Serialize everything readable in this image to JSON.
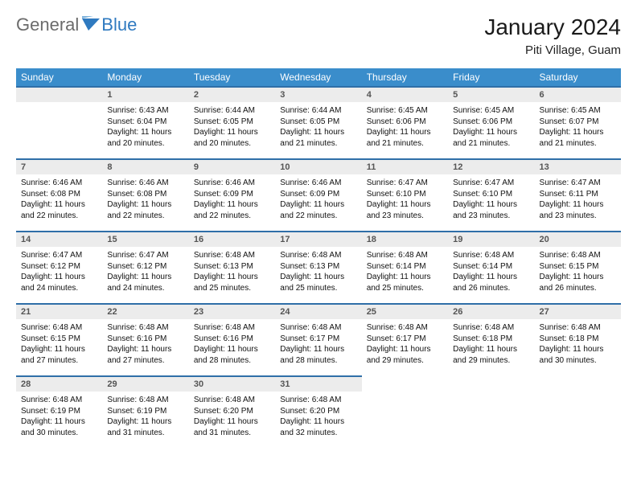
{
  "brand": {
    "part1": "General",
    "part2": "Blue"
  },
  "title": "January 2024",
  "location": "Piti Village, Guam",
  "colors": {
    "header_bg": "#3a8dcb",
    "header_text": "#ffffff",
    "row_divider": "#2f6fa8",
    "day_head_bg": "#ececec",
    "logo_accent": "#2f7ac0",
    "logo_gray": "#6b6b6b"
  },
  "dow": [
    "Sunday",
    "Monday",
    "Tuesday",
    "Wednesday",
    "Thursday",
    "Friday",
    "Saturday"
  ],
  "leading_blanks": 0,
  "days": [
    {
      "n": "",
      "sunrise": "",
      "sunset": "",
      "daylight": ""
    },
    {
      "n": "1",
      "sunrise": "Sunrise: 6:43 AM",
      "sunset": "Sunset: 6:04 PM",
      "daylight": "Daylight: 11 hours and 20 minutes."
    },
    {
      "n": "2",
      "sunrise": "Sunrise: 6:44 AM",
      "sunset": "Sunset: 6:05 PM",
      "daylight": "Daylight: 11 hours and 20 minutes."
    },
    {
      "n": "3",
      "sunrise": "Sunrise: 6:44 AM",
      "sunset": "Sunset: 6:05 PM",
      "daylight": "Daylight: 11 hours and 21 minutes."
    },
    {
      "n": "4",
      "sunrise": "Sunrise: 6:45 AM",
      "sunset": "Sunset: 6:06 PM",
      "daylight": "Daylight: 11 hours and 21 minutes."
    },
    {
      "n": "5",
      "sunrise": "Sunrise: 6:45 AM",
      "sunset": "Sunset: 6:06 PM",
      "daylight": "Daylight: 11 hours and 21 minutes."
    },
    {
      "n": "6",
      "sunrise": "Sunrise: 6:45 AM",
      "sunset": "Sunset: 6:07 PM",
      "daylight": "Daylight: 11 hours and 21 minutes."
    },
    {
      "n": "7",
      "sunrise": "Sunrise: 6:46 AM",
      "sunset": "Sunset: 6:08 PM",
      "daylight": "Daylight: 11 hours and 22 minutes."
    },
    {
      "n": "8",
      "sunrise": "Sunrise: 6:46 AM",
      "sunset": "Sunset: 6:08 PM",
      "daylight": "Daylight: 11 hours and 22 minutes."
    },
    {
      "n": "9",
      "sunrise": "Sunrise: 6:46 AM",
      "sunset": "Sunset: 6:09 PM",
      "daylight": "Daylight: 11 hours and 22 minutes."
    },
    {
      "n": "10",
      "sunrise": "Sunrise: 6:46 AM",
      "sunset": "Sunset: 6:09 PM",
      "daylight": "Daylight: 11 hours and 22 minutes."
    },
    {
      "n": "11",
      "sunrise": "Sunrise: 6:47 AM",
      "sunset": "Sunset: 6:10 PM",
      "daylight": "Daylight: 11 hours and 23 minutes."
    },
    {
      "n": "12",
      "sunrise": "Sunrise: 6:47 AM",
      "sunset": "Sunset: 6:10 PM",
      "daylight": "Daylight: 11 hours and 23 minutes."
    },
    {
      "n": "13",
      "sunrise": "Sunrise: 6:47 AM",
      "sunset": "Sunset: 6:11 PM",
      "daylight": "Daylight: 11 hours and 23 minutes."
    },
    {
      "n": "14",
      "sunrise": "Sunrise: 6:47 AM",
      "sunset": "Sunset: 6:12 PM",
      "daylight": "Daylight: 11 hours and 24 minutes."
    },
    {
      "n": "15",
      "sunrise": "Sunrise: 6:47 AM",
      "sunset": "Sunset: 6:12 PM",
      "daylight": "Daylight: 11 hours and 24 minutes."
    },
    {
      "n": "16",
      "sunrise": "Sunrise: 6:48 AM",
      "sunset": "Sunset: 6:13 PM",
      "daylight": "Daylight: 11 hours and 25 minutes."
    },
    {
      "n": "17",
      "sunrise": "Sunrise: 6:48 AM",
      "sunset": "Sunset: 6:13 PM",
      "daylight": "Daylight: 11 hours and 25 minutes."
    },
    {
      "n": "18",
      "sunrise": "Sunrise: 6:48 AM",
      "sunset": "Sunset: 6:14 PM",
      "daylight": "Daylight: 11 hours and 25 minutes."
    },
    {
      "n": "19",
      "sunrise": "Sunrise: 6:48 AM",
      "sunset": "Sunset: 6:14 PM",
      "daylight": "Daylight: 11 hours and 26 minutes."
    },
    {
      "n": "20",
      "sunrise": "Sunrise: 6:48 AM",
      "sunset": "Sunset: 6:15 PM",
      "daylight": "Daylight: 11 hours and 26 minutes."
    },
    {
      "n": "21",
      "sunrise": "Sunrise: 6:48 AM",
      "sunset": "Sunset: 6:15 PM",
      "daylight": "Daylight: 11 hours and 27 minutes."
    },
    {
      "n": "22",
      "sunrise": "Sunrise: 6:48 AM",
      "sunset": "Sunset: 6:16 PM",
      "daylight": "Daylight: 11 hours and 27 minutes."
    },
    {
      "n": "23",
      "sunrise": "Sunrise: 6:48 AM",
      "sunset": "Sunset: 6:16 PM",
      "daylight": "Daylight: 11 hours and 28 minutes."
    },
    {
      "n": "24",
      "sunrise": "Sunrise: 6:48 AM",
      "sunset": "Sunset: 6:17 PM",
      "daylight": "Daylight: 11 hours and 28 minutes."
    },
    {
      "n": "25",
      "sunrise": "Sunrise: 6:48 AM",
      "sunset": "Sunset: 6:17 PM",
      "daylight": "Daylight: 11 hours and 29 minutes."
    },
    {
      "n": "26",
      "sunrise": "Sunrise: 6:48 AM",
      "sunset": "Sunset: 6:18 PM",
      "daylight": "Daylight: 11 hours and 29 minutes."
    },
    {
      "n": "27",
      "sunrise": "Sunrise: 6:48 AM",
      "sunset": "Sunset: 6:18 PM",
      "daylight": "Daylight: 11 hours and 30 minutes."
    },
    {
      "n": "28",
      "sunrise": "Sunrise: 6:48 AM",
      "sunset": "Sunset: 6:19 PM",
      "daylight": "Daylight: 11 hours and 30 minutes."
    },
    {
      "n": "29",
      "sunrise": "Sunrise: 6:48 AM",
      "sunset": "Sunset: 6:19 PM",
      "daylight": "Daylight: 11 hours and 31 minutes."
    },
    {
      "n": "30",
      "sunrise": "Sunrise: 6:48 AM",
      "sunset": "Sunset: 6:20 PM",
      "daylight": "Daylight: 11 hours and 31 minutes."
    },
    {
      "n": "31",
      "sunrise": "Sunrise: 6:48 AM",
      "sunset": "Sunset: 6:20 PM",
      "daylight": "Daylight: 11 hours and 32 minutes."
    }
  ]
}
